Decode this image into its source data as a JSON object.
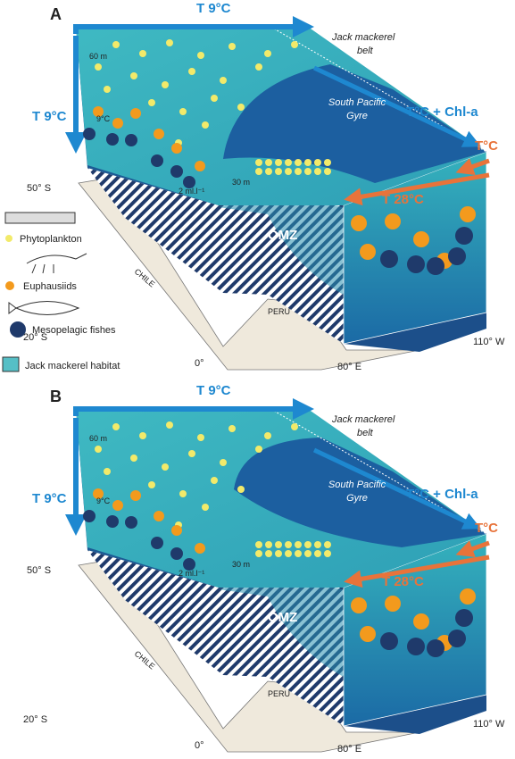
{
  "panels": [
    {
      "label": "A",
      "top_temp": "T 9°C",
      "belt": [
        "Jack mackerel",
        "belt"
      ],
      "depth_60": "60 m",
      "side_temp": "T 9°C",
      "inner_temp": "9°C",
      "gyre": [
        "South Pacific",
        "Gyre"
      ],
      "temp_chl": "T°C + Chl-a",
      "temp_in": "T°C",
      "temp_28": "T 28°C",
      "depth_30": "30 m",
      "oxygen": "2 ml.l⁻¹",
      "omz": "OMZ",
      "lat_50": "50° S",
      "lat_20": "20° S",
      "lat_0": "0°",
      "chile": "CHILE",
      "peru": "PERU",
      "lon_80": "80° E",
      "lon_110": "110° W"
    },
    {
      "label": "B",
      "top_temp": "T 9°C",
      "belt": [
        "Jack mackerel",
        "belt"
      ],
      "depth_60": "60 m",
      "side_temp": "T 9°C",
      "inner_temp": "9°C",
      "gyre": [
        "South Pacific",
        "Gyre"
      ],
      "temp_chl": "T°C + Chl-a",
      "temp_in": "T°C",
      "temp_28": "T 28°C",
      "depth_30": "30 m",
      "oxygen": "2 ml.l⁻¹",
      "omz": "OMZ",
      "lat_50": "50° S",
      "lat_20": "20° S",
      "lat_0": "0°",
      "chile": "CHILE",
      "peru": "PERU",
      "lon_80": "80° E",
      "lon_110": "110° W"
    }
  ],
  "legend": {
    "phytoplankton": "Phytoplankton",
    "euphausiids": "Euphausiids",
    "fishes": "Mesopelagic fishes",
    "habitat": "Jack mackerel habitat"
  }
}
